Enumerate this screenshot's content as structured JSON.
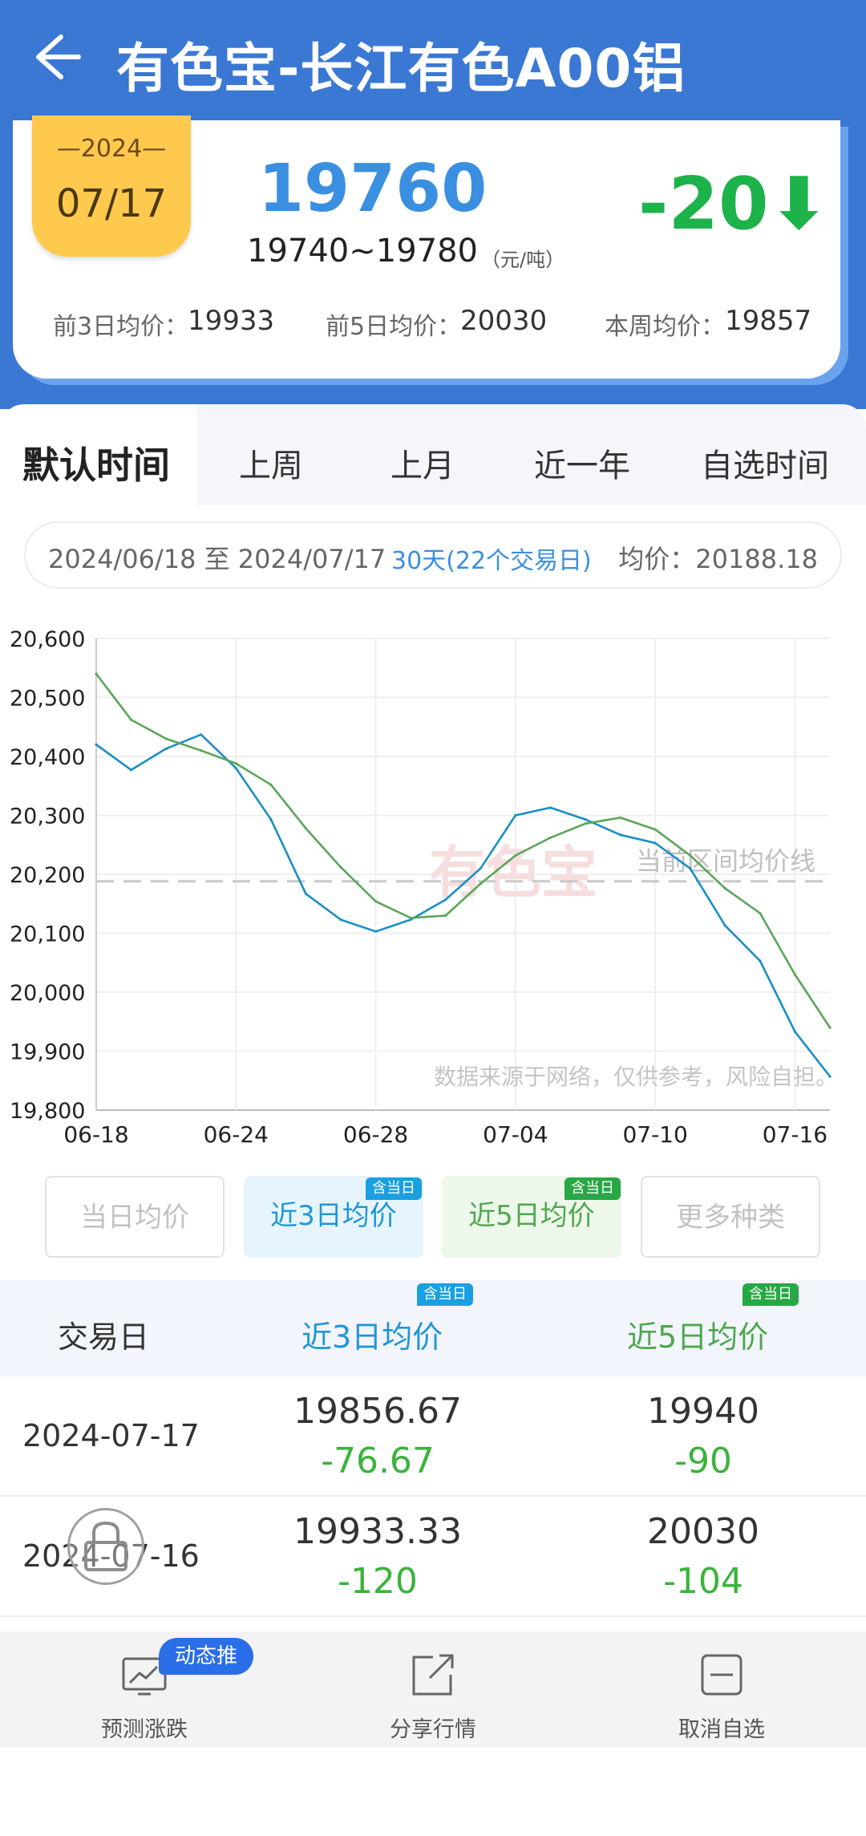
{
  "header": {
    "title": "有色宝-长江有色A00铝"
  },
  "price_card": {
    "year": "—2024—",
    "date": "07/17",
    "price": "19760",
    "range": "19740~19780",
    "unit": "（元/吨）",
    "change": "-20⬇",
    "change_color": "#1db24a",
    "avg3_label": "前3日均价：",
    "avg3_value": "19933",
    "avg5_label": "前5日均价：",
    "avg5_value": "20030",
    "week_label": "本周均价：",
    "week_value": "19857"
  },
  "tabs": [
    {
      "label": "默认时间"
    },
    {
      "label": "上周"
    },
    {
      "label": "上月"
    },
    {
      "label": "近一年"
    },
    {
      "label": "自选时间"
    }
  ],
  "date_range": {
    "text": "2024/06/18 至 2024/07/17",
    "days": "30天(22个交易日)",
    "avg": "均价：20188.18"
  },
  "chart_data": {
    "type": "line",
    "x": [
      "06-18",
      "06-19",
      "06-20",
      "06-21",
      "06-24",
      "06-25",
      "06-26",
      "06-27",
      "06-28",
      "07-01",
      "07-02",
      "07-03",
      "07-04",
      "07-05",
      "07-08",
      "07-09",
      "07-10",
      "07-11",
      "07-12",
      "07-15",
      "07-16",
      "07-17"
    ],
    "x_ticks": [
      "06-18",
      "06-24",
      "06-28",
      "07-04",
      "07-10",
      "07-16"
    ],
    "y_ticks": [
      "20,600",
      "20,500",
      "20,400",
      "20,300",
      "20,200",
      "20,100",
      "20,000",
      "19,900",
      "19,800"
    ],
    "ylim": [
      19800,
      20600
    ],
    "series": [
      {
        "name": "近3日均价",
        "color": "#1a8fc4",
        "values": [
          20420,
          20377,
          20413,
          20437,
          20380,
          20293,
          20167,
          20123,
          20103,
          20123,
          20157,
          20210,
          20300,
          20313,
          20293,
          20267,
          20253,
          20210,
          20113,
          20053,
          19933,
          19857
        ]
      },
      {
        "name": "近5日均价",
        "color": "#5aa55a",
        "values": [
          20540,
          20462,
          20430,
          20410,
          20388,
          20352,
          20278,
          20212,
          20154,
          20126,
          20130,
          20184,
          20232,
          20262,
          20286,
          20296,
          20276,
          20232,
          20176,
          20134,
          20030,
          19940
        ]
      }
    ],
    "mean_line": {
      "value": 20188.18,
      "label": "当前区间均价线"
    },
    "watermark": "有色宝",
    "disclaimer": "数据来源于网络，仅供参考，风险自担。",
    "grid": true
  },
  "legend_buttons": [
    {
      "label": "当日均价",
      "tag": ""
    },
    {
      "label": "近3日均价",
      "tag": "含当日"
    },
    {
      "label": "近5日均价",
      "tag": "含当日"
    },
    {
      "label": "更多种类",
      "tag": ""
    }
  ],
  "table": {
    "headers": {
      "date": "交易日",
      "avg3": "近3日均价",
      "avg5": "近5日均价",
      "tag": "含当日"
    },
    "rows": [
      {
        "date": "2024-07-17",
        "avg3": "19856.67",
        "avg3_change": "-76.67",
        "avg5": "19940",
        "avg5_change": "-90"
      },
      {
        "date": "2024-07-16",
        "avg3": "19933.33",
        "avg3_change": "-120",
        "avg5": "20030",
        "avg5_change": "-104"
      }
    ]
  },
  "bottom_bar": {
    "predict": "预测涨跌",
    "predict_badge": "动态推",
    "share": "分享行情",
    "unfav": "取消自选"
  }
}
